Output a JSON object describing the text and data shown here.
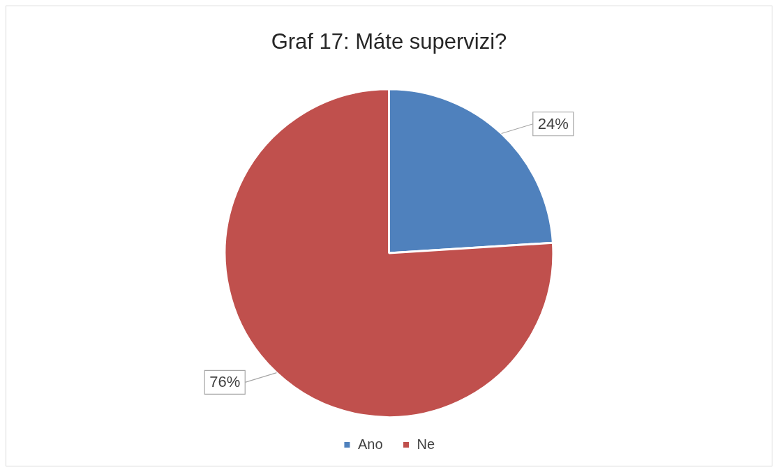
{
  "chart_data": {
    "type": "pie",
    "title": "Graf 17: Máte supervizi?",
    "categories": [
      "Ano",
      "Ne"
    ],
    "values": [
      24,
      76
    ],
    "colors": [
      "#4f81bd",
      "#c0504d"
    ],
    "value_labels": [
      "24%",
      "76%"
    ],
    "legend": "bottom"
  }
}
